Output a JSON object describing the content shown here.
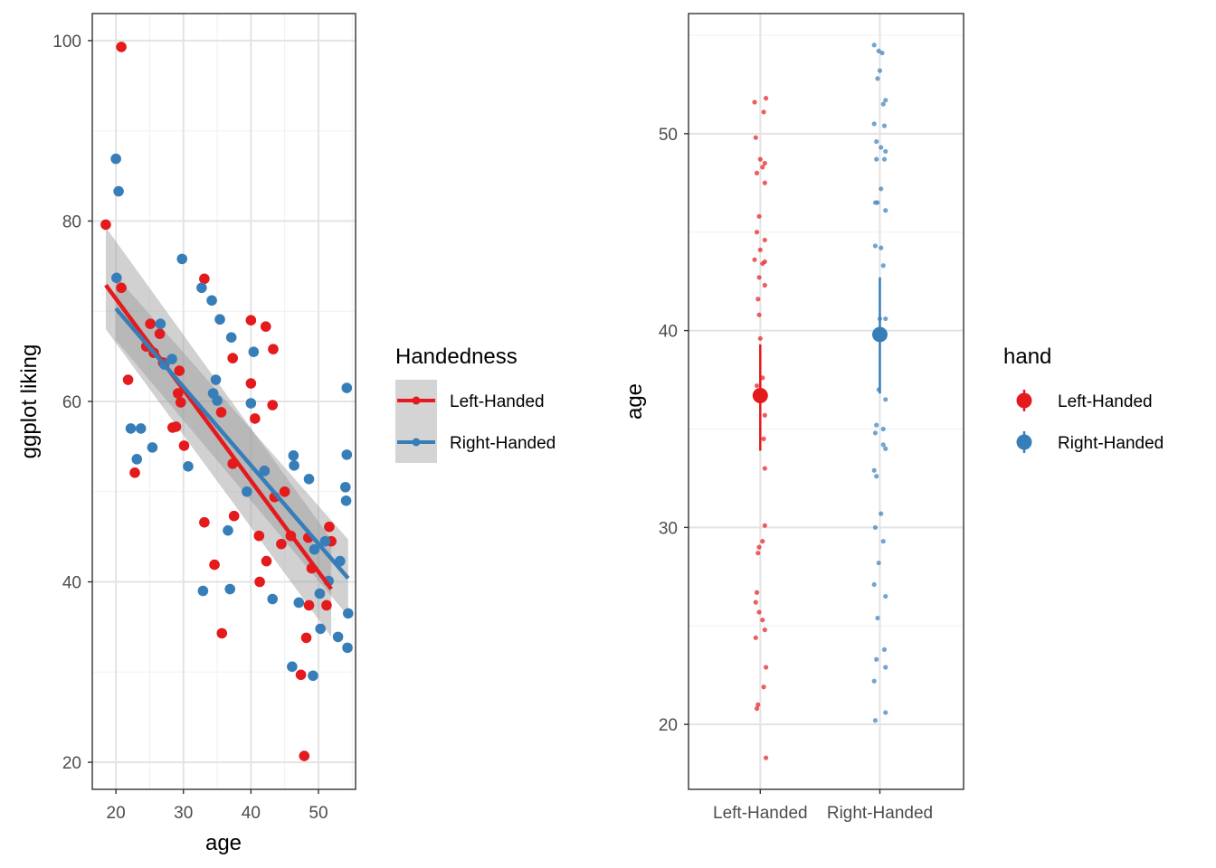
{
  "chart_data": [
    {
      "type": "scatter",
      "xlabel": "age",
      "ylabel": "ggplot liking",
      "xlim": [
        16.5,
        55.5
      ],
      "ylim": [
        17,
        103
      ],
      "x_ticks": [
        20,
        30,
        40,
        50
      ],
      "y_ticks": [
        20,
        40,
        60,
        80,
        100
      ],
      "grid": true,
      "legend": {
        "title": "Handedness",
        "placement": "right",
        "entries": [
          "Left-Handed",
          "Right-Handed"
        ]
      },
      "colors": {
        "Left-Handed": "#e41a1c",
        "Right-Handed": "#377eb8",
        "ribbon": "#999999"
      },
      "series": [
        {
          "name": "Left-Handed",
          "points": [
            [
              18.5,
              79.6
            ],
            [
              20.8,
              99.3
            ],
            [
              20.8,
              72.6
            ],
            [
              21.8,
              62.4
            ],
            [
              22.8,
              52.1
            ],
            [
              24.5,
              66.1
            ],
            [
              25.1,
              68.6
            ],
            [
              25.6,
              65.4
            ],
            [
              26.5,
              67.5
            ],
            [
              27.0,
              64.3
            ],
            [
              28.4,
              57.1
            ],
            [
              28.9,
              57.2
            ],
            [
              29.2,
              60.9
            ],
            [
              29.4,
              63.4
            ],
            [
              29.6,
              59.9
            ],
            [
              30.1,
              55.1
            ],
            [
              33.1,
              73.6
            ],
            [
              33.1,
              46.6
            ],
            [
              34.6,
              41.9
            ],
            [
              35.6,
              58.8
            ],
            [
              35.7,
              34.3
            ],
            [
              37.3,
              64.8
            ],
            [
              37.5,
              47.3
            ],
            [
              37.3,
              53.1
            ],
            [
              40.0,
              69.0
            ],
            [
              40.0,
              62.0
            ],
            [
              40.6,
              58.1
            ],
            [
              41.2,
              45.1
            ],
            [
              41.3,
              40.0
            ],
            [
              42.0,
              52.3
            ],
            [
              42.2,
              68.3
            ],
            [
              42.3,
              42.3
            ],
            [
              43.2,
              59.6
            ],
            [
              43.3,
              65.8
            ],
            [
              43.5,
              49.4
            ],
            [
              44.5,
              44.2
            ],
            [
              45.0,
              50.0
            ],
            [
              45.9,
              45.1
            ],
            [
              47.4,
              29.7
            ],
            [
              47.9,
              20.7
            ],
            [
              48.2,
              33.8
            ],
            [
              48.6,
              37.4
            ],
            [
              49.0,
              41.5
            ],
            [
              51.2,
              37.4
            ],
            [
              51.6,
              46.1
            ],
            [
              51.9,
              44.5
            ],
            [
              48.5,
              44.9
            ]
          ],
          "fit": {
            "x": [
              18.5,
              51.9
            ],
            "y": [
              72.9,
              39.2
            ],
            "ribbon_low": [
              68.0,
              33.9
            ],
            "ribbon_high": [
              79.3,
              44.7
            ]
          }
        },
        {
          "name": "Right-Handed",
          "points": [
            [
              20.0,
              86.9
            ],
            [
              20.4,
              83.3
            ],
            [
              20.1,
              73.7
            ],
            [
              22.2,
              57.0
            ],
            [
              23.1,
              53.6
            ],
            [
              23.7,
              57.0
            ],
            [
              25.4,
              54.9
            ],
            [
              26.6,
              68.6
            ],
            [
              27.2,
              64.1
            ],
            [
              28.3,
              64.7
            ],
            [
              29.8,
              75.8
            ],
            [
              30.7,
              52.8
            ],
            [
              32.7,
              72.6
            ],
            [
              32.9,
              39.0
            ],
            [
              34.2,
              71.2
            ],
            [
              34.4,
              60.9
            ],
            [
              34.8,
              62.4
            ],
            [
              35.0,
              60.1
            ],
            [
              35.4,
              69.1
            ],
            [
              36.6,
              45.7
            ],
            [
              36.9,
              39.2
            ],
            [
              37.1,
              67.1
            ],
            [
              39.4,
              50.0
            ],
            [
              40.0,
              59.8
            ],
            [
              40.4,
              65.5
            ],
            [
              42.0,
              52.3
            ],
            [
              43.2,
              38.1
            ],
            [
              46.1,
              30.6
            ],
            [
              46.3,
              54.0
            ],
            [
              46.4,
              52.9
            ],
            [
              47.1,
              37.7
            ],
            [
              48.6,
              51.4
            ],
            [
              49.2,
              29.6
            ],
            [
              49.4,
              43.6
            ],
            [
              50.2,
              38.7
            ],
            [
              50.3,
              34.8
            ],
            [
              51.0,
              44.5
            ],
            [
              51.5,
              40.1
            ],
            [
              52.9,
              33.9
            ],
            [
              53.2,
              42.3
            ],
            [
              54.0,
              50.5
            ],
            [
              54.1,
              49.0
            ],
            [
              54.2,
              54.1
            ],
            [
              54.2,
              61.5
            ],
            [
              54.3,
              32.7
            ],
            [
              54.4,
              36.5
            ]
          ],
          "fit": {
            "x": [
              20.0,
              54.4
            ],
            "y": [
              70.3,
              40.4
            ],
            "ribbon_low": [
              66.8,
              36.2
            ],
            "ribbon_high": [
              73.9,
              44.7
            ]
          }
        }
      ]
    },
    {
      "type": "scatter",
      "xlabel": "",
      "ylabel": "age",
      "categories": [
        "Left-Handed",
        "Right-Handed"
      ],
      "ylim": [
        16.7,
        56.1
      ],
      "y_ticks": [
        20,
        30,
        40,
        50
      ],
      "grid": true,
      "legend": {
        "title": "hand",
        "placement": "right",
        "entries": [
          "Left-Handed",
          "Right-Handed"
        ]
      },
      "series": [
        {
          "name": "Left-Handed",
          "mean": 36.7,
          "ci": [
            33.9,
            39.3
          ],
          "points": [
            [
              -0.05,
              51.6
            ],
            [
              0.05,
              51.8
            ],
            [
              0.03,
              51.1
            ],
            [
              -0.04,
              49.8
            ],
            [
              0.0,
              48.7
            ],
            [
              0.04,
              48.5
            ],
            [
              0.02,
              48.3
            ],
            [
              -0.03,
              48.0
            ],
            [
              0.04,
              47.5
            ],
            [
              -0.01,
              45.8
            ],
            [
              -0.03,
              45.0
            ],
            [
              0.04,
              44.6
            ],
            [
              0.0,
              44.1
            ],
            [
              -0.05,
              43.6
            ],
            [
              0.02,
              43.4
            ],
            [
              0.04,
              43.5
            ],
            [
              -0.01,
              42.7
            ],
            [
              0.04,
              42.3
            ],
            [
              -0.02,
              41.6
            ],
            [
              -0.01,
              40.8
            ],
            [
              0.0,
              39.6
            ],
            [
              0.02,
              37.6
            ],
            [
              -0.03,
              37.2
            ],
            [
              0.04,
              35.7
            ],
            [
              0.03,
              34.5
            ],
            [
              0.04,
              33.0
            ],
            [
              0.04,
              30.1
            ],
            [
              0.02,
              29.3
            ],
            [
              -0.01,
              29.0
            ],
            [
              -0.02,
              28.7
            ],
            [
              -0.03,
              26.7
            ],
            [
              -0.04,
              26.2
            ],
            [
              0.02,
              25.3
            ],
            [
              -0.01,
              25.7
            ],
            [
              0.04,
              24.8
            ],
            [
              -0.04,
              24.4
            ],
            [
              0.05,
              22.9
            ],
            [
              0.03,
              21.9
            ],
            [
              -0.02,
              21.0
            ],
            [
              -0.03,
              20.8
            ],
            [
              0.05,
              18.3
            ]
          ]
        },
        {
          "name": "Right-Handed",
          "mean": 39.8,
          "ci": [
            36.8,
            42.7
          ],
          "points": [
            [
              -0.05,
              54.5
            ],
            [
              -0.01,
              54.2
            ],
            [
              0.02,
              54.1
            ],
            [
              0.0,
              53.2
            ],
            [
              -0.02,
              52.8
            ],
            [
              0.05,
              51.7
            ],
            [
              0.03,
              51.5
            ],
            [
              -0.05,
              50.5
            ],
            [
              0.04,
              50.4
            ],
            [
              -0.03,
              49.6
            ],
            [
              0.01,
              49.3
            ],
            [
              0.05,
              49.1
            ],
            [
              -0.03,
              48.7
            ],
            [
              0.04,
              48.7
            ],
            [
              0.01,
              47.2
            ],
            [
              -0.04,
              46.5
            ],
            [
              -0.02,
              46.5
            ],
            [
              0.05,
              46.1
            ],
            [
              -0.04,
              44.3
            ],
            [
              0.01,
              44.2
            ],
            [
              0.03,
              43.3
            ],
            [
              0.0,
              40.6
            ],
            [
              -0.02,
              39.6
            ],
            [
              0.05,
              40.6
            ],
            [
              -0.01,
              37.0
            ],
            [
              0.05,
              36.5
            ],
            [
              -0.03,
              35.2
            ],
            [
              0.03,
              35.0
            ],
            [
              -0.04,
              34.8
            ],
            [
              0.03,
              34.2
            ],
            [
              0.05,
              34.0
            ],
            [
              -0.05,
              32.9
            ],
            [
              -0.03,
              32.6
            ],
            [
              0.01,
              30.7
            ],
            [
              -0.04,
              30.0
            ],
            [
              0.03,
              29.3
            ],
            [
              -0.01,
              28.2
            ],
            [
              -0.05,
              27.1
            ],
            [
              0.05,
              26.5
            ],
            [
              -0.02,
              25.4
            ],
            [
              0.04,
              23.8
            ],
            [
              -0.03,
              23.3
            ],
            [
              0.05,
              22.9
            ],
            [
              -0.05,
              22.2
            ],
            [
              -0.04,
              20.2
            ],
            [
              0.05,
              20.6
            ]
          ]
        }
      ]
    }
  ]
}
